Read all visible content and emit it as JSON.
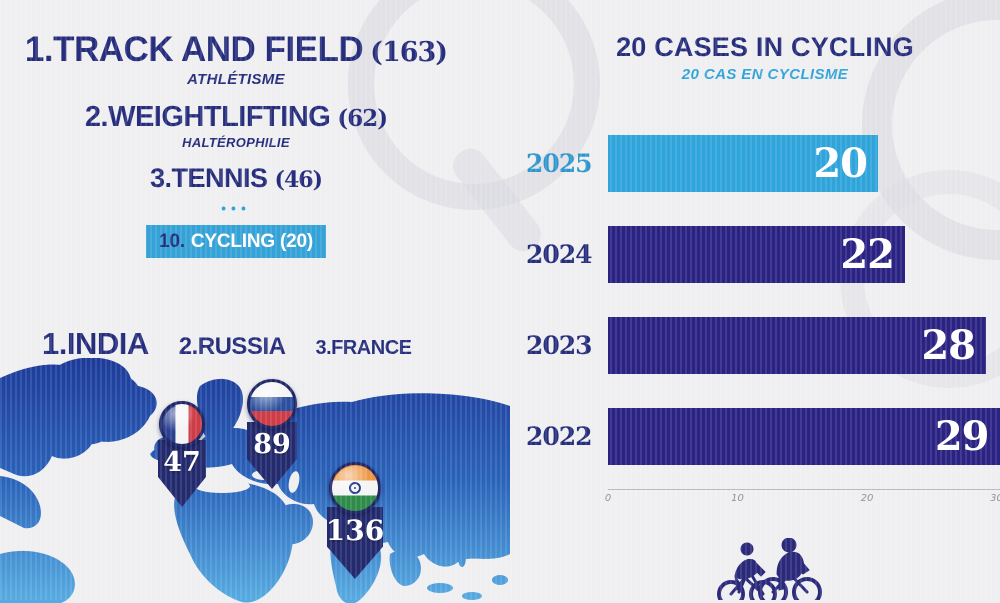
{
  "palette": {
    "background": "#efeff1",
    "navy": "#262d7c",
    "accent_blue": "#2fa3d9",
    "bar_navy": "#2b2383",
    "bar_blue": "#2ea4da",
    "map_top": "#1d3a99",
    "map_bottom": "#57ace2",
    "pin_navy": "#232a6e"
  },
  "sports_ranking": {
    "items": [
      {
        "rank": "1.",
        "name": "TRACK AND FIELD",
        "count": "(163)",
        "subtitle": "ATHLÉTISME"
      },
      {
        "rank": "2.",
        "name": "WEIGHTLIFTING",
        "count": "(62)",
        "subtitle": "HALTÉROPHILIE"
      },
      {
        "rank": "3.",
        "name": "TENNIS",
        "count": "(46)",
        "subtitle": ""
      }
    ],
    "ellipsis": "•••",
    "highlighted": {
      "rank": "10.",
      "name": "CYCLING (20)"
    }
  },
  "country_ranking": {
    "items": [
      {
        "rank": "1.",
        "name": "INDIA"
      },
      {
        "rank": "2.",
        "name": "RUSSIA"
      },
      {
        "rank": "3.",
        "name": "FRANCE"
      }
    ]
  },
  "map": {
    "pins": [
      {
        "country": "France",
        "value": "47"
      },
      {
        "country": "Russia",
        "value": "89"
      },
      {
        "country": "India",
        "value": "136"
      }
    ]
  },
  "chart_data": {
    "type": "bar",
    "orientation": "horizontal",
    "title": "20 CASES IN CYCLING",
    "subtitle": "20 CAS EN CYCLISME",
    "categories": [
      "2025",
      "2024",
      "2023",
      "2022"
    ],
    "values": [
      20,
      22,
      28,
      29
    ],
    "bar_colors": [
      "#2ea4da",
      "#2b2383",
      "#2b2383",
      "#2b2383"
    ],
    "label_colors": [
      "#2e96cc",
      "#262d7c",
      "#262d7c",
      "#262d7c"
    ],
    "xlim": [
      0,
      30
    ],
    "x_ticks": [
      0,
      10,
      20,
      30
    ],
    "grid": false,
    "legend": null
  }
}
